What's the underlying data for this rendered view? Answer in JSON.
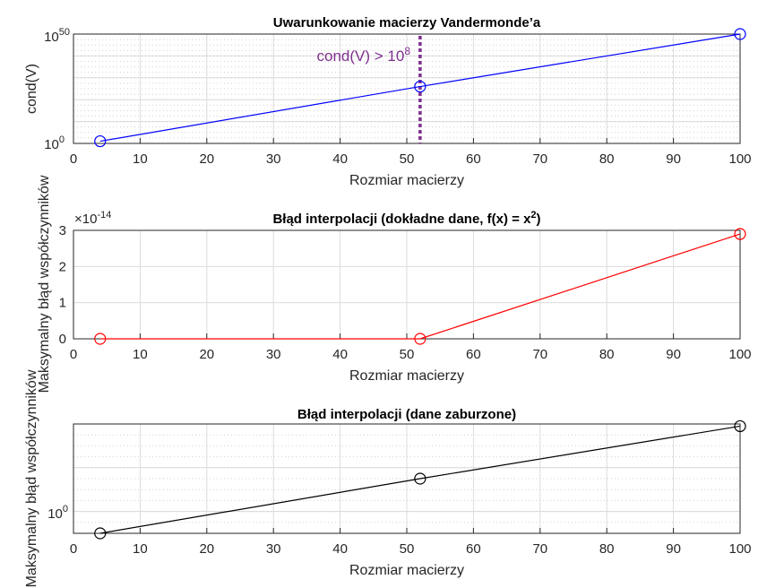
{
  "chart_data": [
    {
      "type": "line",
      "title": "Uwarunkowanie macierzy Vandermonde’a",
      "xlabel": "Rozmiar macierzy",
      "ylabel": "cond(V)",
      "xlim": [
        0,
        100
      ],
      "xticks": [
        "0",
        "10",
        "20",
        "30",
        "40",
        "50",
        "60",
        "70",
        "80",
        "90",
        "100"
      ],
      "yscale": "log",
      "ylim_exp": [
        0,
        50
      ],
      "yticks": [
        {
          "base": "10",
          "exp": "0"
        },
        {
          "base": "10",
          "exp": "50"
        }
      ],
      "grid": true,
      "x": [
        4,
        52,
        100
      ],
      "y_exp": [
        1,
        26,
        50
      ],
      "color": "#0000FF",
      "marker": "circle",
      "annotation": {
        "text": "cond(V) > 10",
        "sup": "8",
        "x": 52,
        "color": "#7E2F8E",
        "line": "vertical-dotted"
      }
    },
    {
      "type": "line",
      "title": "Błąd interpolacji (dokładne dane, f(x) = x",
      "title_sup": "2",
      "title_end": ")",
      "xlabel": "Rozmiar macierzy",
      "ylabel": "Maksymalny błąd współczynników",
      "xlim": [
        0,
        100
      ],
      "xticks": [
        "0",
        "10",
        "20",
        "30",
        "40",
        "50",
        "60",
        "70",
        "80",
        "90",
        "100"
      ],
      "ylim": [
        0,
        3
      ],
      "yticks": [
        "0",
        "1",
        "2",
        "3"
      ],
      "y_multiplier": {
        "base": "×10",
        "exp": "-14"
      },
      "grid": true,
      "x": [
        4,
        52,
        100
      ],
      "y": [
        0,
        0,
        2.9
      ],
      "color": "#FF0000",
      "marker": "circle"
    },
    {
      "type": "line",
      "title": "Błąd interpolacji (dane zaburzone)",
      "xlabel": "Rozmiar macierzy",
      "ylabel": "Maksymalny błąd współczynników",
      "xlim": [
        0,
        100
      ],
      "xticks": [
        "0",
        "10",
        "20",
        "30",
        "40",
        "50",
        "60",
        "70",
        "80",
        "90",
        "100"
      ],
      "yscale": "log",
      "ylim_exp": [
        -0.5,
        2.0
      ],
      "yticks": [
        {
          "base": "10",
          "exp": "0"
        }
      ],
      "grid": true,
      "x": [
        4,
        52,
        100
      ],
      "y_exp": [
        -0.5,
        0.75,
        1.95
      ],
      "color": "#000000",
      "marker": "circle"
    }
  ]
}
